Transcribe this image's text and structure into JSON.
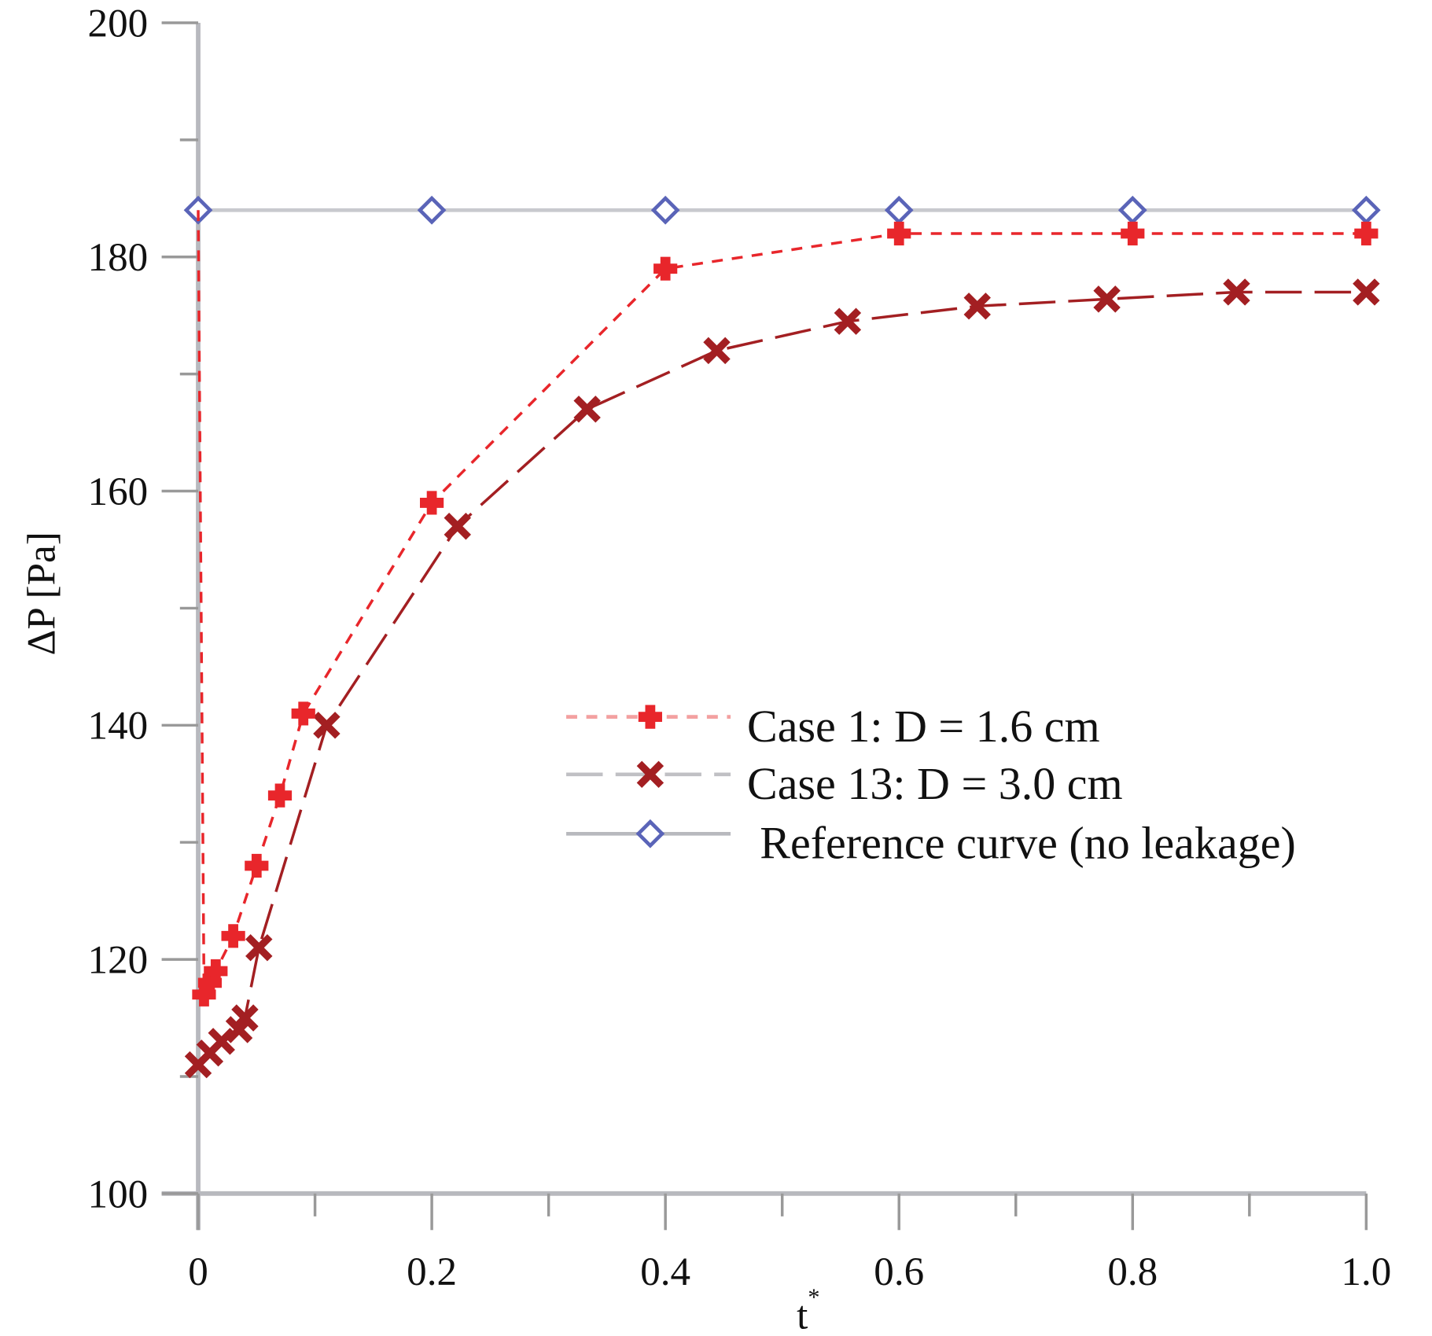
{
  "chart_data": {
    "type": "line",
    "title": "",
    "xlabel": "t*",
    "ylabel": "ΔP [Pa]",
    "xlim": [
      0,
      1.0
    ],
    "ylim": [
      100,
      200
    ],
    "xticks": [
      "0",
      "0.2",
      "0.4",
      "0.6",
      "0.8",
      "1.0"
    ],
    "xtick_values": [
      0,
      0.2,
      0.4,
      0.6,
      0.8,
      1.0
    ],
    "yticks": [
      "100",
      "120",
      "140",
      "160",
      "180",
      "200"
    ],
    "ytick_values": [
      100,
      120,
      140,
      160,
      180,
      200
    ],
    "grid": false,
    "legend_position": "center-right",
    "series": [
      {
        "name": "Case 1: D = 1.6 cm",
        "color": "#e8262b",
        "line": "short-dash",
        "marker": "plus",
        "x": [
          0,
          0.005,
          0.01,
          0.015,
          0.03,
          0.05,
          0.07,
          0.09,
          0.2,
          0.4,
          0.6,
          0.8,
          1.0
        ],
        "y": [
          184,
          117,
          118,
          119,
          122,
          128,
          134,
          141,
          159,
          179,
          182,
          182,
          182
        ]
      },
      {
        "name": "Case 13: D = 3.0 cm",
        "color": "#a31f22",
        "line": "long-dash",
        "marker": "x",
        "x": [
          0,
          0.01,
          0.02,
          0.035,
          0.04,
          0.052,
          0.11,
          0.222,
          0.333,
          0.444,
          0.556,
          0.667,
          0.778,
          0.889,
          1.0
        ],
        "y": [
          111,
          112,
          113,
          114,
          115,
          121,
          140,
          157,
          167,
          172,
          174.5,
          175.8,
          176.4,
          177,
          177
        ]
      },
      {
        "name": "Reference curve (no leakage)",
        "color": "#5a64b8",
        "line": "solid",
        "marker": "diamond",
        "x": [
          0,
          0.2,
          0.4,
          0.6,
          0.8,
          1.0
        ],
        "y": [
          184,
          184,
          184,
          184,
          184,
          184
        ]
      }
    ]
  }
}
